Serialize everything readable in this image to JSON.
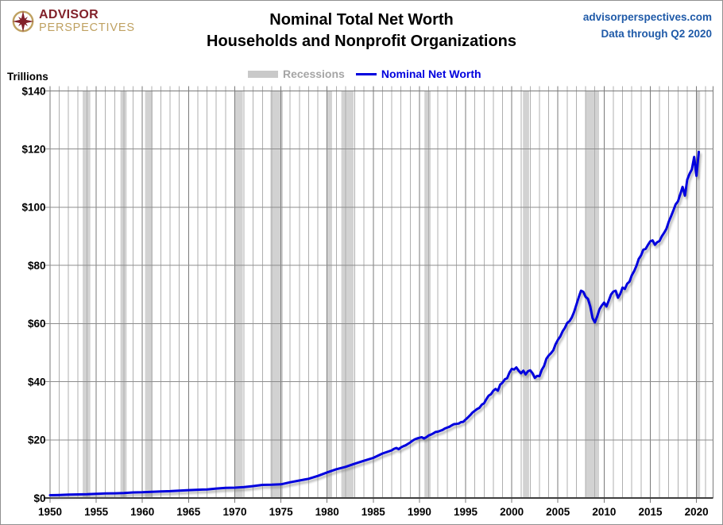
{
  "header": {
    "logo": {
      "line1": "ADVISOR",
      "line2": "PERSPECTIVES"
    },
    "title_line1": "Nominal Total Net Worth",
    "title_line2": "Households and Nonprofit Organizations",
    "site": "advisorperspectives.com",
    "data_through": "Data through Q2 2020"
  },
  "legend": {
    "recessions_label": "Recessions",
    "series_label": "Nominal Net Worth"
  },
  "colors": {
    "line": "#0000DE",
    "line_shadow": "#7A7A7A",
    "recession_band": "#D2D2D2",
    "legend_swatch": "#C9C9C9",
    "legend_recession_text": "#A5A5A5",
    "grid_minor": "#AFAFAF",
    "grid_major": "#7A7A7A",
    "grid_horizontal": "#8C8C8C",
    "axis_line": "#3F3F3F",
    "site_text": "#1F5AA8",
    "logo_maroon": "#82212A",
    "logo_gold": "#BFA161"
  },
  "chart_data": {
    "type": "line",
    "title": "Nominal Total Net Worth",
    "subtitle": "Households and Nonprofit Organizations",
    "xlabel": "",
    "ylabel": "Trillions",
    "x_range": [
      1950,
      2021.8
    ],
    "ylim": [
      0,
      140
    ],
    "grid": "on",
    "legend_position": "top-center",
    "x_ticks": [
      1950,
      1955,
      1960,
      1965,
      1970,
      1975,
      1980,
      1985,
      1990,
      1995,
      2000,
      2005,
      2010,
      2015,
      2020
    ],
    "x_tick_labels": [
      "1950",
      "1955",
      "1960",
      "1965",
      "1970",
      "1975",
      "1980",
      "1985",
      "1990",
      "1995",
      "2000",
      "2005",
      "2010",
      "2015",
      "2020"
    ],
    "y_ticks": [
      0,
      20,
      40,
      60,
      80,
      100,
      120,
      140
    ],
    "y_tick_labels": [
      "$0",
      "$20",
      "$40",
      "$60",
      "$80",
      "$100",
      "$120",
      "$140"
    ],
    "recessions": [
      [
        1953.54,
        1954.37
      ],
      [
        1957.62,
        1958.29
      ],
      [
        1960.29,
        1961.12
      ],
      [
        1969.96,
        1970.87
      ],
      [
        1973.87,
        1975.21
      ],
      [
        1980.04,
        1980.54
      ],
      [
        1981.54,
        1982.87
      ],
      [
        1990.54,
        1991.21
      ],
      [
        2001.21,
        2001.87
      ],
      [
        2007.96,
        2009.46
      ],
      [
        2020.0,
        2020.4
      ]
    ],
    "series": [
      {
        "name": "Nominal Net Worth",
        "units": "trillions of dollars",
        "points": [
          [
            1950,
            0.95
          ],
          [
            1951,
            1.05
          ],
          [
            1952,
            1.15
          ],
          [
            1953,
            1.22
          ],
          [
            1954,
            1.28
          ],
          [
            1955,
            1.45
          ],
          [
            1956,
            1.55
          ],
          [
            1957,
            1.62
          ],
          [
            1958,
            1.7
          ],
          [
            1959,
            1.9
          ],
          [
            1960,
            1.98
          ],
          [
            1961,
            2.1
          ],
          [
            1962,
            2.28
          ],
          [
            1963,
            2.35
          ],
          [
            1964,
            2.5
          ],
          [
            1965,
            2.7
          ],
          [
            1966,
            2.85
          ],
          [
            1967,
            2.95
          ],
          [
            1968,
            3.25
          ],
          [
            1969,
            3.5
          ],
          [
            1970,
            3.55
          ],
          [
            1971,
            3.75
          ],
          [
            1972,
            4.1
          ],
          [
            1973,
            4.5
          ],
          [
            1974,
            4.55
          ],
          [
            1975,
            4.7
          ],
          [
            1976,
            5.4
          ],
          [
            1977,
            6.0
          ],
          [
            1978,
            6.6
          ],
          [
            1979,
            7.6
          ],
          [
            1980,
            8.8
          ],
          [
            1981,
            9.9
          ],
          [
            1982,
            10.7
          ],
          [
            1983,
            11.8
          ],
          [
            1984,
            12.8
          ],
          [
            1985,
            13.8
          ],
          [
            1986,
            15.3
          ],
          [
            1987.0,
            16.4
          ],
          [
            1987.25,
            16.9
          ],
          [
            1987.5,
            17.2
          ],
          [
            1987.75,
            16.8
          ],
          [
            1988.0,
            17.4
          ],
          [
            1988.25,
            17.8
          ],
          [
            1988.5,
            18.1
          ],
          [
            1988.75,
            18.6
          ],
          [
            1989.0,
            19.1
          ],
          [
            1989.25,
            19.7
          ],
          [
            1989.5,
            20.2
          ],
          [
            1989.75,
            20.5
          ],
          [
            1990.0,
            20.7
          ],
          [
            1990.25,
            20.9
          ],
          [
            1990.5,
            20.5
          ],
          [
            1990.75,
            20.9
          ],
          [
            1991.0,
            21.5
          ],
          [
            1991.25,
            21.8
          ],
          [
            1991.5,
            22.2
          ],
          [
            1991.75,
            22.7
          ],
          [
            1992.0,
            22.8
          ],
          [
            1992.25,
            23.1
          ],
          [
            1992.5,
            23.4
          ],
          [
            1992.75,
            23.9
          ],
          [
            1993.0,
            24.2
          ],
          [
            1993.25,
            24.5
          ],
          [
            1993.5,
            25.0
          ],
          [
            1993.75,
            25.4
          ],
          [
            1994.0,
            25.5
          ],
          [
            1994.25,
            25.6
          ],
          [
            1994.5,
            26.1
          ],
          [
            1994.75,
            26.2
          ],
          [
            1995.0,
            27.0
          ],
          [
            1995.25,
            27.7
          ],
          [
            1995.5,
            28.5
          ],
          [
            1995.75,
            29.4
          ],
          [
            1996.0,
            30.0
          ],
          [
            1996.25,
            30.6
          ],
          [
            1996.5,
            31.0
          ],
          [
            1996.75,
            32.1
          ],
          [
            1997.0,
            32.6
          ],
          [
            1997.25,
            34.0
          ],
          [
            1997.5,
            35.2
          ],
          [
            1997.75,
            35.7
          ],
          [
            1998.0,
            36.9
          ],
          [
            1998.25,
            37.5
          ],
          [
            1998.5,
            36.9
          ],
          [
            1998.75,
            39.0
          ],
          [
            1999.0,
            39.7
          ],
          [
            1999.25,
            40.8
          ],
          [
            1999.5,
            41.2
          ],
          [
            1999.75,
            43.1
          ],
          [
            2000.0,
            44.4
          ],
          [
            2000.25,
            44.2
          ],
          [
            2000.5,
            44.9
          ],
          [
            2000.75,
            43.8
          ],
          [
            2001.0,
            42.9
          ],
          [
            2001.25,
            43.8
          ],
          [
            2001.5,
            42.5
          ],
          [
            2001.75,
            43.6
          ],
          [
            2002.0,
            43.9
          ],
          [
            2002.25,
            42.9
          ],
          [
            2002.5,
            41.3
          ],
          [
            2002.75,
            42.0
          ],
          [
            2003.0,
            41.9
          ],
          [
            2003.25,
            44.1
          ],
          [
            2003.5,
            45.4
          ],
          [
            2003.75,
            47.9
          ],
          [
            2004.0,
            49.0
          ],
          [
            2004.25,
            49.8
          ],
          [
            2004.5,
            50.8
          ],
          [
            2004.75,
            52.9
          ],
          [
            2005.0,
            54.4
          ],
          [
            2005.25,
            55.5
          ],
          [
            2005.5,
            57.3
          ],
          [
            2005.75,
            58.5
          ],
          [
            2006.0,
            60.2
          ],
          [
            2006.25,
            60.8
          ],
          [
            2006.5,
            62.1
          ],
          [
            2006.75,
            64.0
          ],
          [
            2007.0,
            66.5
          ],
          [
            2007.25,
            69.0
          ],
          [
            2007.5,
            71.3
          ],
          [
            2007.75,
            70.9
          ],
          [
            2008.0,
            69.2
          ],
          [
            2008.25,
            68.5
          ],
          [
            2008.5,
            65.9
          ],
          [
            2008.75,
            61.9
          ],
          [
            2009.0,
            60.4
          ],
          [
            2009.25,
            62.4
          ],
          [
            2009.5,
            64.9
          ],
          [
            2009.75,
            66.2
          ],
          [
            2010.0,
            67.2
          ],
          [
            2010.25,
            65.9
          ],
          [
            2010.5,
            67.9
          ],
          [
            2010.75,
            70.0
          ],
          [
            2011.0,
            71.0
          ],
          [
            2011.25,
            71.3
          ],
          [
            2011.5,
            68.9
          ],
          [
            2011.75,
            70.2
          ],
          [
            2012.0,
            72.4
          ],
          [
            2012.25,
            71.9
          ],
          [
            2012.5,
            73.7
          ],
          [
            2012.75,
            74.4
          ],
          [
            2013.0,
            76.6
          ],
          [
            2013.25,
            78.0
          ],
          [
            2013.5,
            79.8
          ],
          [
            2013.75,
            82.2
          ],
          [
            2014.0,
            83.4
          ],
          [
            2014.25,
            85.4
          ],
          [
            2014.5,
            85.7
          ],
          [
            2014.75,
            87.1
          ],
          [
            2015.0,
            88.3
          ],
          [
            2015.25,
            88.6
          ],
          [
            2015.5,
            87.1
          ],
          [
            2015.75,
            88.0
          ],
          [
            2016.0,
            88.4
          ],
          [
            2016.25,
            90.0
          ],
          [
            2016.5,
            91.2
          ],
          [
            2016.75,
            92.6
          ],
          [
            2017.0,
            95.0
          ],
          [
            2017.25,
            96.9
          ],
          [
            2017.5,
            98.9
          ],
          [
            2017.75,
            101.0
          ],
          [
            2018.0,
            102.0
          ],
          [
            2018.25,
            104.5
          ],
          [
            2018.5,
            107.0
          ],
          [
            2018.75,
            104.0
          ],
          [
            2019.0,
            109.5
          ],
          [
            2019.25,
            111.5
          ],
          [
            2019.5,
            113.0
          ],
          [
            2019.75,
            117.3
          ],
          [
            2020.0,
            110.8
          ],
          [
            2020.25,
            119.0
          ]
        ]
      }
    ]
  }
}
